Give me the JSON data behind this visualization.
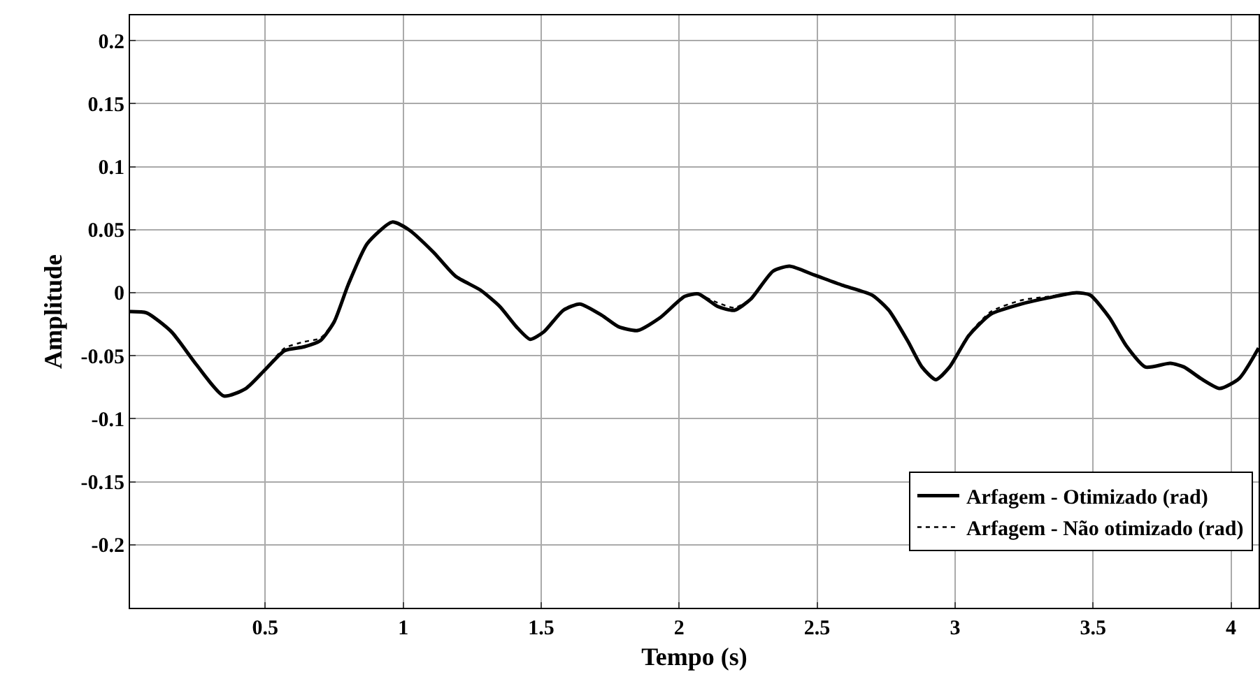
{
  "chart_data": {
    "type": "line",
    "xlabel": "Tempo (s)",
    "ylabel": "Amplitude",
    "xlim": [
      0.01,
      4.1
    ],
    "ylim": [
      -0.25,
      0.22
    ],
    "xticks": [
      0.5,
      1,
      1.5,
      2,
      2.5,
      3,
      3.5,
      4
    ],
    "yticks": [
      -0.2,
      -0.15,
      -0.1,
      -0.05,
      0,
      0.05,
      0.1,
      0.15,
      0.2
    ],
    "grid": true,
    "legend": "bottom right",
    "x": [
      0.01,
      0.07,
      0.16,
      0.25,
      0.35,
      0.43,
      0.5,
      0.57,
      0.64,
      0.7,
      0.75,
      0.8,
      0.87,
      0.96,
      1.02,
      1.11,
      1.19,
      1.28,
      1.35,
      1.41,
      1.46,
      1.51,
      1.58,
      1.64,
      1.72,
      1.78,
      1.85,
      1.93,
      2.02,
      2.07,
      2.14,
      2.2,
      2.26,
      2.34,
      2.4,
      2.49,
      2.59,
      2.7,
      2.76,
      2.83,
      2.88,
      2.93,
      2.98,
      3.05,
      3.13,
      3.24,
      3.34,
      3.44,
      3.49,
      3.56,
      3.62,
      3.69,
      3.78,
      3.83,
      3.89,
      3.96,
      4.03,
      4.1
    ],
    "series": [
      {
        "name": "Arfagem - Otimizado (rad)",
        "color": "#000000",
        "line_style": "solid",
        "values": [
          -0.015,
          -0.016,
          -0.031,
          -0.057,
          -0.082,
          -0.076,
          -0.061,
          -0.046,
          -0.043,
          -0.038,
          -0.023,
          0.006,
          0.039,
          0.056,
          0.05,
          0.032,
          0.013,
          0.002,
          -0.011,
          -0.027,
          -0.037,
          -0.031,
          -0.014,
          -0.009,
          -0.018,
          -0.027,
          -0.03,
          -0.02,
          -0.003,
          -0.001,
          -0.011,
          -0.014,
          -0.005,
          0.017,
          0.021,
          0.014,
          0.006,
          -0.002,
          -0.014,
          -0.039,
          -0.059,
          -0.069,
          -0.059,
          -0.034,
          -0.017,
          -0.009,
          -0.004,
          0.0,
          -0.002,
          -0.02,
          -0.042,
          -0.059,
          -0.056,
          -0.059,
          -0.068,
          -0.076,
          -0.068,
          -0.044
        ]
      },
      {
        "name": "Arfagem - Não otimizado (rad)",
        "color": "#000000",
        "line_style": "dotted",
        "values": [
          null,
          null,
          null,
          null,
          null,
          null,
          -0.061,
          -0.044,
          -0.039,
          -0.036,
          -0.023,
          null,
          null,
          null,
          null,
          null,
          null,
          null,
          null,
          null,
          null,
          null,
          null,
          null,
          null,
          null,
          null,
          null,
          null,
          -0.001,
          -0.008,
          -0.012,
          -0.005,
          null,
          null,
          null,
          null,
          null,
          null,
          null,
          null,
          null,
          -0.059,
          -0.033,
          -0.015,
          -0.006,
          -0.003,
          0.0,
          null,
          null,
          null,
          null,
          null,
          null,
          null,
          null,
          null,
          null
        ]
      }
    ]
  }
}
